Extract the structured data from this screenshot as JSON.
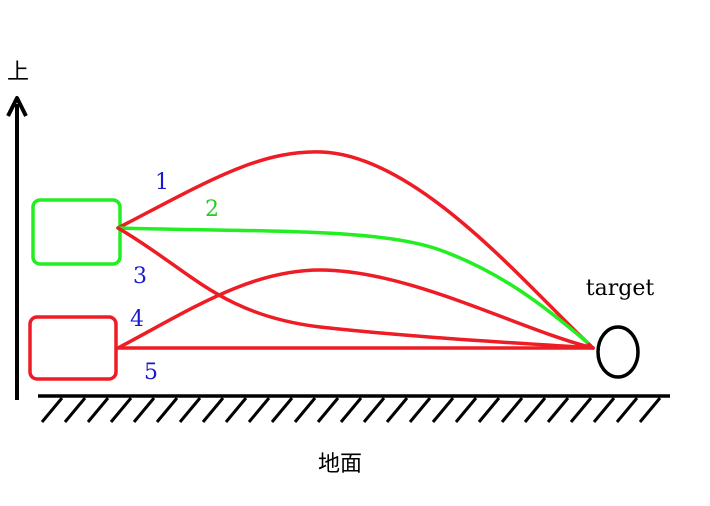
{
  "axis_label": "上",
  "paths": [
    {
      "label": "1"
    },
    {
      "label": "2"
    },
    {
      "label": "3"
    },
    {
      "label": "4"
    },
    {
      "label": "5"
    }
  ],
  "target_label": "target",
  "ground_label": "地面"
}
